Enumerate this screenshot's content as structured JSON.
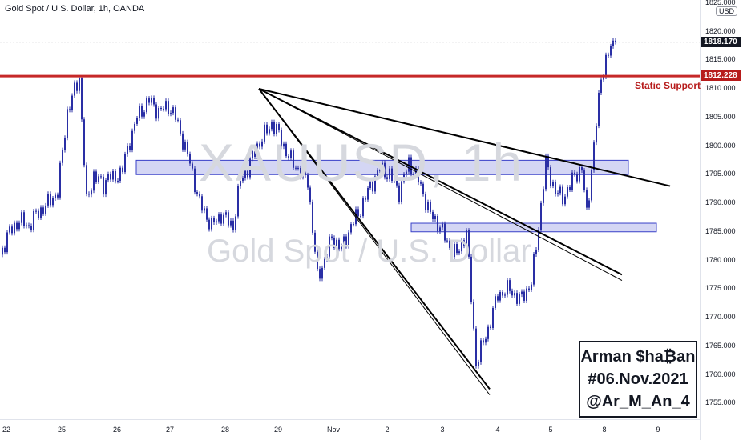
{
  "header": {
    "title": "Gold Spot / U.S. Dollar, 1h, OANDA"
  },
  "watermark": {
    "symbol": "XAUUSD, 1h",
    "name": "Gold Spot / U.S. Dollar"
  },
  "y_axis": {
    "currency": "USD",
    "ticks": [
      "1825.000",
      "1820.000",
      "1815.000",
      "1810.000",
      "1805.000",
      "1800.000",
      "1795.000",
      "1790.000",
      "1785.000",
      "1780.000",
      "1775.000",
      "1770.000",
      "1765.000",
      "1760.000",
      "1755.000"
    ]
  },
  "x_axis": {
    "ticks": [
      "22",
      "25",
      "26",
      "27",
      "28",
      "29",
      "Nov",
      "2",
      "3",
      "4",
      "5",
      "8",
      "9"
    ]
  },
  "price_tags": {
    "current": {
      "label": "1818.170",
      "color": "#131722"
    },
    "support": {
      "label": "1812.228",
      "color": "#b71c1c"
    }
  },
  "annotations": {
    "support_label": "Static Support"
  },
  "signature": {
    "line1": "Arman $ha₿an",
    "line2": "#06.Nov.2021",
    "line3": "@Ar_M_An_4"
  },
  "colors": {
    "candle": "#2a2fa5",
    "support_line": "#c62828",
    "zone_fill": "#c5c8f0",
    "zone_border": "#3940c8",
    "trendline": "#000000"
  },
  "chart_data": {
    "type": "line",
    "symbol": "XAUUSD",
    "timeframe": "1h",
    "ylim": [
      1753,
      1826
    ],
    "dates": [
      "22",
      "25",
      "26",
      "27",
      "28",
      "29",
      "Nov",
      "2",
      "3",
      "4",
      "5",
      "8",
      "9"
    ],
    "x": [
      0,
      4,
      8,
      12,
      15,
      20,
      24,
      28,
      33,
      36,
      39,
      43,
      45,
      47,
      51,
      54,
      57,
      62,
      66,
      70,
      73,
      76,
      79,
      83,
      88,
      92,
      97,
      100,
      103,
      107,
      110,
      113,
      116,
      120,
      124,
      128,
      132,
      135,
      138,
      142,
      146,
      150,
      154,
      158,
      162,
      166,
      170,
      174,
      179,
      183,
      186,
      190,
      194,
      198,
      203,
      207,
      212,
      216,
      221,
      224,
      227,
      231,
      234,
      237,
      239,
      242,
      244,
      247,
      250,
      252,
      254,
      256
    ],
    "close": [
      1781,
      1785,
      1787,
      1786,
      1788,
      1790,
      1792,
      1806,
      1812,
      1790,
      1795,
      1793,
      1795,
      1794,
      1796,
      1801,
      1805,
      1808,
      1806,
      1807,
      1805,
      1801,
      1797,
      1790,
      1786,
      1788,
      1786,
      1794,
      1796,
      1800,
      1802,
      1804,
      1802,
      1798,
      1796,
      1794,
      1777,
      1780,
      1784,
      1782,
      1786,
      1789,
      1793,
      1796,
      1795,
      1792,
      1797,
      1794,
      1788,
      1786,
      1783,
      1781,
      1785,
      1762,
      1768,
      1774,
      1775,
      1773,
      1776,
      1786,
      1797,
      1792,
      1791,
      1793,
      1795,
      1796,
      1788,
      1800,
      1812,
      1815,
      1817,
      1818.17
    ],
    "horizontal_lines": [
      {
        "label": "Static Support",
        "value": 1812.228
      }
    ],
    "zones": [
      {
        "from": 1795,
        "to": 1797.5
      },
      {
        "from": 1785,
        "to": 1786.5
      }
    ],
    "trendlines": [
      {
        "x1": 111,
        "y1": 1810,
        "x2": 282,
        "y2": 1793
      },
      {
        "x1": 111,
        "y1": 1810,
        "x2": 262,
        "y2": 1776.5
      },
      {
        "x1": 111,
        "y1": 1810,
        "x2": 262,
        "y2": 1777.5
      },
      {
        "x1": 111,
        "y1": 1810,
        "x2": 207,
        "y2": 1756.5
      },
      {
        "x1": 111,
        "y1": 1810,
        "x2": 207,
        "y2": 1757.5
      }
    ]
  }
}
